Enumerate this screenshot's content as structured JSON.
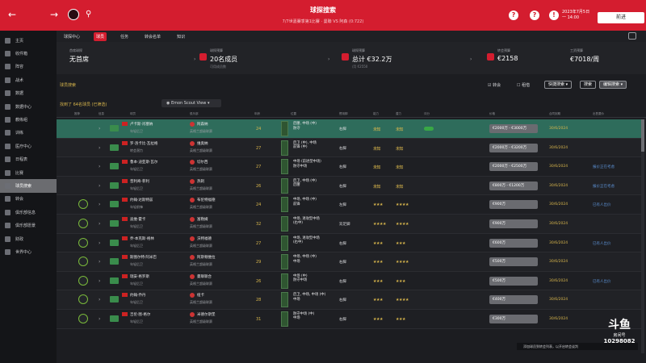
{
  "topbar": {
    "back": "←",
    "forward": "→",
    "title": "球探搜索",
    "subtitle": "7/7世嘉賽季第1比賽 · 曼聯 VS 阿森 (0:722)",
    "date_line1": "2023年7月5日",
    "date_line2": "一 14:00",
    "continue_label": "前进"
  },
  "sidebar": {
    "items": [
      "主页",
      "收件箱",
      "阵容",
      "战术",
      "数据",
      "数据中心",
      "教练组",
      "训练",
      "医疗中心",
      "日程表",
      "比赛",
      "球员搜索",
      "转会",
      "俱乐部信息",
      "俱乐部愿景",
      "财政",
      "世界中心"
    ],
    "active_index": 11
  },
  "tabs": {
    "items": [
      "球探中心",
      "球员",
      "任务",
      "转会名单",
      "知识"
    ],
    "active_index": 1
  },
  "info": {
    "scout_label": "首席球探",
    "scout_value": "无首席",
    "budget_label": "球探预算",
    "budget_value": "20名成员",
    "budget_sub": "可用成员数",
    "scout_fee_label": "球探预算",
    "scout_fee_value": "总计 €32.2万",
    "scout_fee_sub": "/月 €2550",
    "transfer_label": "转会预算",
    "transfer_value": "€2158",
    "wage_label": "工资预算",
    "wage_value": "€7018/周"
  },
  "filters": {
    "section_title": "球员搜索",
    "chk1": "转会",
    "chk2": "租借",
    "btn1": "快捷搜索",
    "btn2": "搜索",
    "btn3": "编辑搜索"
  },
  "search": {
    "found": "找到了 64名球员 (已筛选)",
    "view_label": "Emon Scout View"
  },
  "columns": [
    "推荐",
    "信息",
    "球员",
    "俱乐部",
    "年龄",
    "位置",
    "惯用脚",
    "能力",
    "潜力",
    "评分",
    "价格",
    "合同到期",
    "出售要价"
  ],
  "rows": [
    {
      "name": "卢卡斯·肖塞纳",
      "role": "年轻后卫",
      "club": "阿森纳",
      "league": "英格兰超级联赛",
      "age": "24",
      "pos": "后腰, 中场 (中)\n防守",
      "foot": "右脚",
      "cur": "未知",
      "pot": "未知",
      "price": "€2000万 - €3000万",
      "expiry": "30/6/2024",
      "sale": "",
      "hl": true
    },
    {
      "name": "罗·洛卡比·瓦拉格",
      "role": "转会潜力",
      "club": "维奥纳",
      "league": "英格兰超级联赛",
      "age": "27",
      "pos": "后卫 (中), 中场\n前锋 (中)",
      "foot": "右脚",
      "cur": "未知",
      "pot": "未知",
      "price": "€2000万 - €3200万",
      "expiry": "30/6/2024",
      "sale": "",
      "hl": false
    },
    {
      "name": "鲁本·迪亚斯·瓦尔",
      "role": "年轻后卫",
      "club": "切尔西",
      "league": "英格兰超级联赛",
      "age": "27",
      "pos": "中场 (前进型中场)\n防守中场",
      "foot": "右脚",
      "cur": "未知",
      "pot": "未知",
      "price": "€2000万 - €2500万",
      "expiry": "30/6/2024",
      "sale": "报价正在考虑",
      "hl": false
    },
    {
      "name": "普利奇·菲利",
      "role": "年轻后卫",
      "club": "热刺",
      "league": "英格兰超级联赛",
      "age": "26",
      "pos": "后卫, 中场 (中)\n后腰",
      "foot": "右脚",
      "cur": "未知",
      "pot": "未知",
      "price": "€800万 - €1200万",
      "expiry": "30/6/2024",
      "sale": "报价正在考虑",
      "hl": false
    },
    {
      "name": "约翰·达斯特兹",
      "role": "年轻前锋",
      "club": "布伦特福德",
      "league": "英格兰超级联赛",
      "age": "24",
      "pos": "中场, 中场 (中)\n前锋",
      "foot": "左脚",
      "cur": "★★★",
      "pot": "★★★★",
      "price": "€900万",
      "expiry": "30/6/2024",
      "sale": "已有人出价",
      "hl": false
    },
    {
      "name": "迪维·霍卡",
      "role": "年轻后卫",
      "club": "富勒姆",
      "league": "英格兰超级联赛",
      "age": "32",
      "pos": "中场, 进攻型中场\n(右中)",
      "foot": "双足脚",
      "cur": "★★★★",
      "pot": "★★★★",
      "price": "€900万",
      "expiry": "30/6/2024",
      "sale": "",
      "hl": false
    },
    {
      "name": "乔·本克斯·格林",
      "role": "年轻后卫",
      "club": "沃特福德",
      "league": "英格兰超级联赛",
      "age": "27",
      "pos": "中场, 进攻型中场\n(右中)",
      "foot": "右脚",
      "cur": "★★★",
      "pot": "★★★",
      "price": "€600万",
      "expiry": "30/6/2024",
      "sale": "已有人出价",
      "hl": false
    },
    {
      "name": "斯图尔特·阿米巴",
      "role": "年轻后卫",
      "club": "阿斯顿维拉",
      "league": "英格兰超级联赛",
      "age": "29",
      "pos": "中场, 中场 (中)\n中场",
      "foot": "右脚",
      "cur": "★★★",
      "pot": "★★★★",
      "price": "€500万",
      "expiry": "30/6/2024",
      "sale": "",
      "hl": false
    },
    {
      "name": "瑞安·格罗斯",
      "role": "年轻后卫",
      "club": "曼联联合",
      "league": "英格兰超级联赛",
      "age": "26",
      "pos": "中场 (中)\n防守中场",
      "foot": "右脚",
      "cur": "★★★",
      "pot": "★★★",
      "price": "€500万",
      "expiry": "30/6/2024",
      "sale": "已有人出价",
      "hl": false
    },
    {
      "name": "约翰·乔丹",
      "role": "年轻后卫",
      "club": "纽卡",
      "league": "英格兰超级联赛",
      "age": "28",
      "pos": "后卫, 中场, 中场 (中)\n中场",
      "foot": "右脚",
      "cur": "★★★",
      "pot": "★★★★",
      "price": "€400万",
      "expiry": "30/6/2024",
      "sale": "",
      "hl": false
    },
    {
      "name": "吉伦·图·格尔",
      "role": "年轻后卫",
      "club": "米德尔斯堡",
      "league": "英格兰超级联赛",
      "age": "31",
      "pos": "防守中场 (中)\n中场",
      "foot": "右脚",
      "cur": "★★★",
      "pot": "★★★",
      "price": "€300万",
      "expiry": "30/6/2024",
      "sale": "",
      "hl": false
    }
  ],
  "ticker": "添加球员到转会列表，以开启转会谈判",
  "watermark": {
    "brand": "斗鱼",
    "sub": "房间号",
    "number": "10298082"
  }
}
